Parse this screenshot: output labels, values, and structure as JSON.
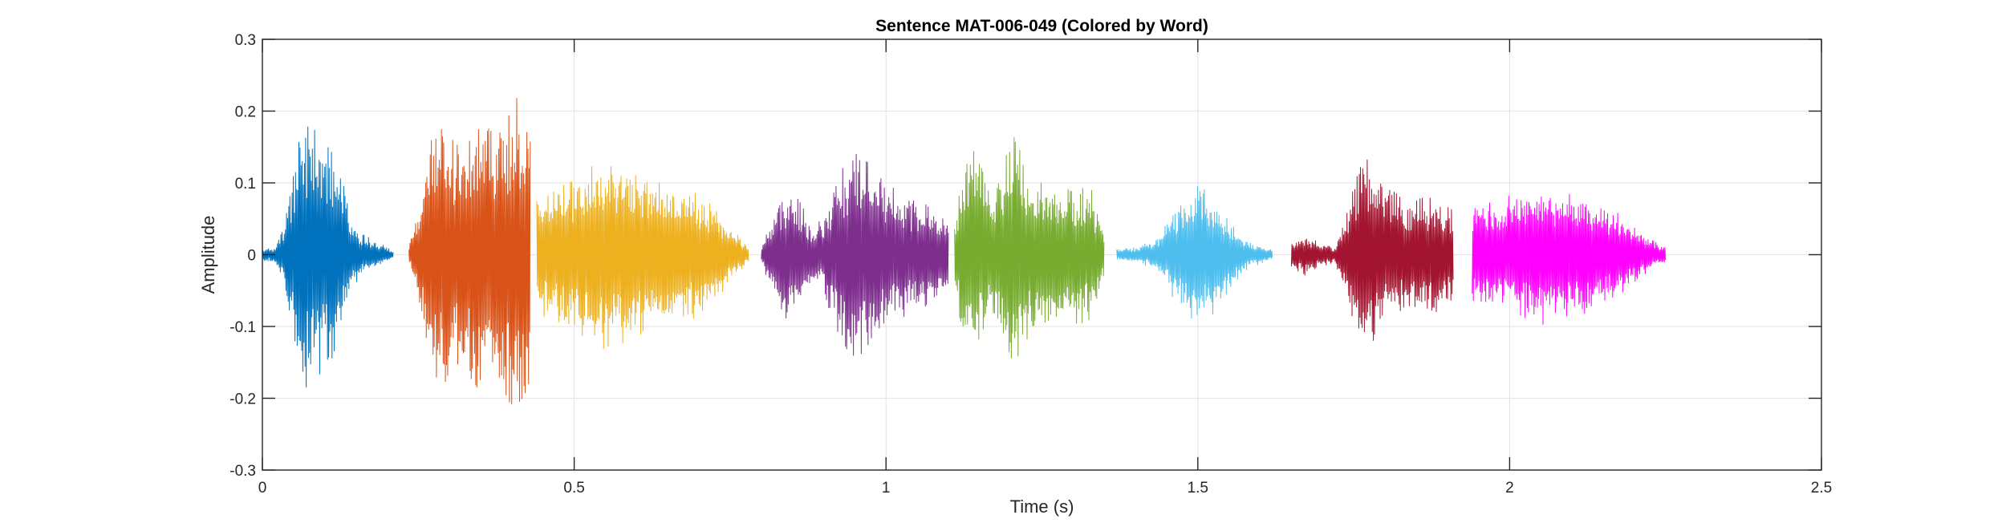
{
  "chart_data": {
    "type": "line",
    "title": "Sentence MAT-006-049 (Colored by Word)",
    "xlabel": "Time (s)",
    "ylabel": "Amplitude",
    "xlim": [
      0,
      2.5
    ],
    "ylim": [
      -0.3,
      0.3
    ],
    "xticks": [
      0,
      0.5,
      1,
      1.5,
      2,
      2.5
    ],
    "xtick_labels": [
      "0",
      "0.5",
      "1",
      "1.5",
      "2",
      "2.5"
    ],
    "yticks": [
      -0.3,
      -0.2,
      -0.1,
      0,
      0.1,
      0.2,
      0.3
    ],
    "ytick_labels": [
      "-0.3",
      "-0.2",
      "-0.1",
      "0",
      "0.1",
      "0.2",
      "0.3"
    ],
    "grid": true,
    "legend": "none",
    "series": [
      {
        "color": "#0072BD",
        "values": [
          [
            0.0,
            0.008
          ],
          [
            0.02,
            0.01
          ],
          [
            0.035,
            0.05
          ],
          [
            0.05,
            0.13
          ],
          [
            0.065,
            0.19
          ],
          [
            0.08,
            0.18
          ],
          [
            0.1,
            0.16
          ],
          [
            0.12,
            0.14
          ],
          [
            0.14,
            0.06
          ],
          [
            0.16,
            0.03
          ],
          [
            0.18,
            0.02
          ],
          [
            0.21,
            0.005
          ]
        ]
      },
      {
        "color": "#D95319",
        "values": [
          [
            0.235,
            0.01
          ],
          [
            0.25,
            0.06
          ],
          [
            0.27,
            0.17
          ],
          [
            0.29,
            0.2
          ],
          [
            0.31,
            0.16
          ],
          [
            0.33,
            0.18
          ],
          [
            0.35,
            0.2
          ],
          [
            0.37,
            0.19
          ],
          [
            0.39,
            0.2
          ],
          [
            0.41,
            0.22
          ],
          [
            0.43,
            0.18
          ]
        ]
      },
      {
        "color": "#EDB120",
        "values": [
          [
            0.44,
            0.09
          ],
          [
            0.46,
            0.09
          ],
          [
            0.49,
            0.1
          ],
          [
            0.52,
            0.12
          ],
          [
            0.55,
            0.14
          ],
          [
            0.58,
            0.13
          ],
          [
            0.62,
            0.11
          ],
          [
            0.66,
            0.1
          ],
          [
            0.7,
            0.09
          ],
          [
            0.73,
            0.06
          ],
          [
            0.76,
            0.03
          ],
          [
            0.78,
            0.01
          ]
        ]
      },
      {
        "color": "#7E2F8E",
        "values": [
          [
            0.8,
            0.01
          ],
          [
            0.82,
            0.06
          ],
          [
            0.84,
            0.09
          ],
          [
            0.86,
            0.08
          ],
          [
            0.88,
            0.04
          ],
          [
            0.9,
            0.05
          ],
          [
            0.92,
            0.11
          ],
          [
            0.95,
            0.15
          ],
          [
            0.98,
            0.12
          ],
          [
            1.01,
            0.1
          ],
          [
            1.04,
            0.08
          ],
          [
            1.07,
            0.07
          ],
          [
            1.1,
            0.05
          ]
        ]
      },
      {
        "color": "#77AC30",
        "values": [
          [
            1.11,
            0.04
          ],
          [
            1.13,
            0.16
          ],
          [
            1.15,
            0.13
          ],
          [
            1.17,
            0.08
          ],
          [
            1.19,
            0.14
          ],
          [
            1.21,
            0.17
          ],
          [
            1.23,
            0.11
          ],
          [
            1.26,
            0.1
          ],
          [
            1.3,
            0.1
          ],
          [
            1.33,
            0.09
          ],
          [
            1.35,
            0.03
          ]
        ]
      },
      {
        "color": "#4DBEEE",
        "values": [
          [
            1.37,
            0.008
          ],
          [
            1.4,
            0.01
          ],
          [
            1.43,
            0.02
          ],
          [
            1.46,
            0.06
          ],
          [
            1.49,
            0.1
          ],
          [
            1.52,
            0.09
          ],
          [
            1.55,
            0.05
          ],
          [
            1.58,
            0.02
          ],
          [
            1.62,
            0.006
          ]
        ]
      },
      {
        "color": "#A2142F",
        "values": [
          [
            1.65,
            0.02
          ],
          [
            1.67,
            0.03
          ],
          [
            1.69,
            0.02
          ],
          [
            1.72,
            0.01
          ],
          [
            1.75,
            0.1
          ],
          [
            1.77,
            0.15
          ],
          [
            1.8,
            0.1
          ],
          [
            1.83,
            0.08
          ],
          [
            1.86,
            0.08
          ],
          [
            1.89,
            0.08
          ],
          [
            1.91,
            0.07
          ]
        ]
      },
      {
        "color": "#FF00FF",
        "values": [
          [
            1.94,
            0.07
          ],
          [
            1.96,
            0.07
          ],
          [
            1.99,
            0.08
          ],
          [
            2.02,
            0.09
          ],
          [
            2.05,
            0.1
          ],
          [
            2.08,
            0.09
          ],
          [
            2.11,
            0.09
          ],
          [
            2.14,
            0.07
          ],
          [
            2.17,
            0.06
          ],
          [
            2.2,
            0.04
          ],
          [
            2.23,
            0.02
          ],
          [
            2.25,
            0.01
          ]
        ]
      }
    ]
  }
}
